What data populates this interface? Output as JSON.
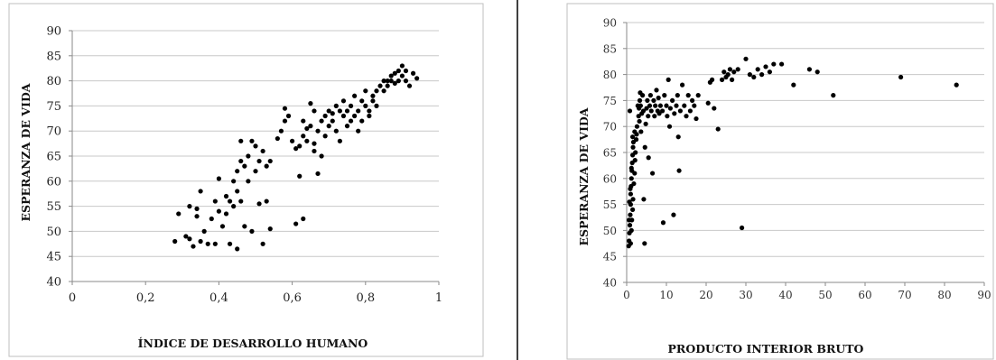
{
  "chart_data": [
    {
      "type": "scatter",
      "title": "",
      "xlabel": "ÍNDICE DE DESARROLLO HUMANO",
      "ylabel": "ESPERANZA DE VIDA",
      "xlim": [
        0,
        1
      ],
      "ylim": [
        40,
        90
      ],
      "xticks": [
        "0",
        "0,2",
        "0,4",
        "0,6",
        "0,8",
        "1"
      ],
      "yticks": [
        "40",
        "45",
        "50",
        "55",
        "60",
        "65",
        "70",
        "75",
        "80",
        "85",
        "90"
      ],
      "grid": "horizontal",
      "legend": "none",
      "marker_color": "#000000",
      "points": [
        [
          0.28,
          48
        ],
        [
          0.29,
          53.5
        ],
        [
          0.31,
          49
        ],
        [
          0.32,
          55
        ],
        [
          0.32,
          48.5
        ],
        [
          0.33,
          47
        ],
        [
          0.34,
          53
        ],
        [
          0.34,
          54.5
        ],
        [
          0.35,
          58
        ],
        [
          0.35,
          48
        ],
        [
          0.36,
          50
        ],
        [
          0.37,
          47.5
        ],
        [
          0.38,
          52.5
        ],
        [
          0.39,
          47.5
        ],
        [
          0.39,
          56
        ],
        [
          0.4,
          60.5
        ],
        [
          0.4,
          54
        ],
        [
          0.41,
          51
        ],
        [
          0.42,
          57
        ],
        [
          0.42,
          53.5
        ],
        [
          0.43,
          56
        ],
        [
          0.43,
          47.5
        ],
        [
          0.44,
          60
        ],
        [
          0.44,
          55
        ],
        [
          0.45,
          62
        ],
        [
          0.45,
          58
        ],
        [
          0.45,
          46.5
        ],
        [
          0.46,
          68
        ],
        [
          0.46,
          64
        ],
        [
          0.46,
          56
        ],
        [
          0.47,
          63
        ],
        [
          0.47,
          51
        ],
        [
          0.48,
          60
        ],
        [
          0.48,
          65
        ],
        [
          0.49,
          68
        ],
        [
          0.49,
          50
        ],
        [
          0.5,
          67
        ],
        [
          0.5,
          62
        ],
        [
          0.51,
          64
        ],
        [
          0.51,
          55.5
        ],
        [
          0.52,
          66
        ],
        [
          0.52,
          47.5
        ],
        [
          0.53,
          63
        ],
        [
          0.53,
          56
        ],
        [
          0.54,
          64
        ],
        [
          0.54,
          50.5
        ],
        [
          0.57,
          70
        ],
        [
          0.58,
          72
        ],
        [
          0.58,
          74.5
        ],
        [
          0.59,
          73
        ],
        [
          0.6,
          68
        ],
        [
          0.61,
          66.5
        ],
        [
          0.61,
          51.5
        ],
        [
          0.62,
          67
        ],
        [
          0.62,
          61
        ],
        [
          0.63,
          69
        ],
        [
          0.63,
          72
        ],
        [
          0.63,
          52.5
        ],
        [
          0.64,
          68
        ],
        [
          0.64,
          70.5
        ],
        [
          0.65,
          71
        ],
        [
          0.65,
          75.5
        ],
        [
          0.66,
          66
        ],
        [
          0.66,
          74
        ],
        [
          0.67,
          70
        ],
        [
          0.67,
          61.5
        ],
        [
          0.68,
          72
        ],
        [
          0.68,
          65
        ],
        [
          0.69,
          73
        ],
        [
          0.69,
          69
        ],
        [
          0.7,
          74
        ],
        [
          0.7,
          71
        ],
        [
          0.71,
          73.5
        ],
        [
          0.71,
          72
        ],
        [
          0.72,
          75
        ],
        [
          0.72,
          70
        ],
        [
          0.73,
          74
        ],
        [
          0.73,
          68
        ],
        [
          0.74,
          73
        ],
        [
          0.74,
          76
        ],
        [
          0.75,
          71
        ],
        [
          0.75,
          74
        ],
        [
          0.76,
          72
        ],
        [
          0.76,
          75
        ],
        [
          0.77,
          73
        ],
        [
          0.77,
          77
        ],
        [
          0.78,
          74
        ],
        [
          0.78,
          70
        ],
        [
          0.79,
          76
        ],
        [
          0.79,
          72
        ],
        [
          0.8,
          75
        ],
        [
          0.8,
          78
        ],
        [
          0.81,
          74
        ],
        [
          0.81,
          73
        ],
        [
          0.82,
          77
        ],
        [
          0.82,
          76
        ],
        [
          0.83,
          78
        ],
        [
          0.83,
          75
        ],
        [
          0.84,
          79
        ],
        [
          0.85,
          78
        ],
        [
          0.85,
          80
        ],
        [
          0.86,
          80
        ],
        [
          0.86,
          79
        ],
        [
          0.87,
          81
        ],
        [
          0.87,
          80
        ],
        [
          0.88,
          81.5
        ],
        [
          0.88,
          79.5
        ],
        [
          0.89,
          82
        ],
        [
          0.89,
          80
        ],
        [
          0.9,
          83
        ],
        [
          0.9,
          81
        ],
        [
          0.91,
          80
        ],
        [
          0.91,
          82
        ],
        [
          0.92,
          79
        ],
        [
          0.93,
          81.5
        ],
        [
          0.94,
          80.5
        ],
        [
          0.66,
          67.5
        ],
        [
          0.56,
          68.5
        ]
      ]
    },
    {
      "type": "scatter",
      "title": "",
      "xlabel": "PRODUCTO INTERIOR BRUTO",
      "ylabel": "ESPERANZA DE VIDA",
      "xlim": [
        0,
        90
      ],
      "ylim": [
        40,
        90
      ],
      "xticks": [
        "0",
        "10",
        "20",
        "30",
        "40",
        "50",
        "60",
        "70",
        "80",
        "90"
      ],
      "yticks": [
        "40",
        "45",
        "50",
        "55",
        "60",
        "65",
        "70",
        "75",
        "80",
        "85",
        "90"
      ],
      "grid": "horizontal",
      "legend": "none",
      "marker_color": "#000000",
      "points": [
        [
          0.5,
          47
        ],
        [
          0.6,
          48
        ],
        [
          0.7,
          49.5
        ],
        [
          0.8,
          51
        ],
        [
          0.9,
          53
        ],
        [
          1.0,
          55
        ],
        [
          1.0,
          57
        ],
        [
          1.1,
          58.5
        ],
        [
          1.2,
          60
        ],
        [
          1.3,
          61.5
        ],
        [
          1.4,
          63
        ],
        [
          1.5,
          64.5
        ],
        [
          1.6,
          66
        ],
        [
          1.7,
          67
        ],
        [
          1.0,
          47.5
        ],
        [
          1.2,
          50
        ],
        [
          1.3,
          52
        ],
        [
          1.5,
          54
        ],
        [
          1.6,
          56
        ],
        [
          1.8,
          59
        ],
        [
          2.0,
          61
        ],
        [
          2.1,
          63.5
        ],
        [
          2.2,
          65
        ],
        [
          2.4,
          67.5
        ],
        [
          2.5,
          68.5
        ],
        [
          2.6,
          70
        ],
        [
          3.0,
          72
        ],
        [
          3.1,
          73.5
        ],
        [
          3.2,
          71
        ],
        [
          3.3,
          75
        ],
        [
          3.5,
          74
        ],
        [
          3.6,
          69
        ],
        [
          3.8,
          72.5
        ],
        [
          4.0,
          76
        ],
        [
          4.2,
          73
        ],
        [
          4.3,
          56
        ],
        [
          4.5,
          47.5
        ],
        [
          4.6,
          66
        ],
        [
          5.0,
          73.5
        ],
        [
          5.2,
          75
        ],
        [
          5.4,
          72
        ],
        [
          5.5,
          64
        ],
        [
          5.8,
          74
        ],
        [
          6.0,
          76
        ],
        [
          6.2,
          73
        ],
        [
          6.5,
          61
        ],
        [
          6.8,
          75
        ],
        [
          7.0,
          72
        ],
        [
          7.2,
          74
        ],
        [
          7.5,
          77
        ],
        [
          7.8,
          73
        ],
        [
          8.0,
          75.5
        ],
        [
          8.2,
          72.5
        ],
        [
          8.5,
          74
        ],
        [
          9.0,
          73
        ],
        [
          9.2,
          51.5
        ],
        [
          9.5,
          76
        ],
        [
          10.0,
          74
        ],
        [
          10.2,
          72
        ],
        [
          10.5,
          79
        ],
        [
          10.8,
          70
        ],
        [
          11.0,
          73.5
        ],
        [
          11.5,
          75
        ],
        [
          11.8,
          53
        ],
        [
          12.0,
          72.5
        ],
        [
          12.5,
          74
        ],
        [
          12.8,
          76
        ],
        [
          13.0,
          68
        ],
        [
          13.2,
          61.5
        ],
        [
          13.5,
          73
        ],
        [
          14.0,
          78
        ],
        [
          14.5,
          74
        ],
        [
          15.0,
          72
        ],
        [
          15.5,
          76
        ],
        [
          16.0,
          73
        ],
        [
          16.5,
          75
        ],
        [
          17.0,
          74
        ],
        [
          17.5,
          71.5
        ],
        [
          18.0,
          76
        ],
        [
          20.5,
          74.5
        ],
        [
          21.0,
          78.5
        ],
        [
          21.5,
          79
        ],
        [
          22.0,
          73.5
        ],
        [
          23.0,
          69.5
        ],
        [
          24.0,
          79
        ],
        [
          24.5,
          80.5
        ],
        [
          25.0,
          79.5
        ],
        [
          25.5,
          80
        ],
        [
          26.0,
          81
        ],
        [
          26.5,
          79
        ],
        [
          27.0,
          80.5
        ],
        [
          28.0,
          81
        ],
        [
          29.0,
          50.5
        ],
        [
          30.0,
          83
        ],
        [
          31.0,
          80
        ],
        [
          32.0,
          79.5
        ],
        [
          33.0,
          81
        ],
        [
          34.0,
          80
        ],
        [
          35.0,
          81.5
        ],
        [
          36.0,
          80.5
        ],
        [
          37.0,
          82
        ],
        [
          39.0,
          82
        ],
        [
          42.0,
          78
        ],
        [
          46.0,
          81
        ],
        [
          48.0,
          80.5
        ],
        [
          52.0,
          76
        ],
        [
          69.0,
          79.5
        ],
        [
          83.0,
          78
        ],
        [
          0.8,
          73
        ],
        [
          1.5,
          68
        ],
        [
          2.8,
          74
        ],
        [
          3.4,
          76.5
        ],
        [
          4.8,
          70.5
        ],
        [
          2.0,
          69
        ],
        [
          1.2,
          62
        ],
        [
          0.9,
          58
        ],
        [
          0.7,
          55.5
        ],
        [
          0.6,
          52
        ]
      ]
    }
  ]
}
